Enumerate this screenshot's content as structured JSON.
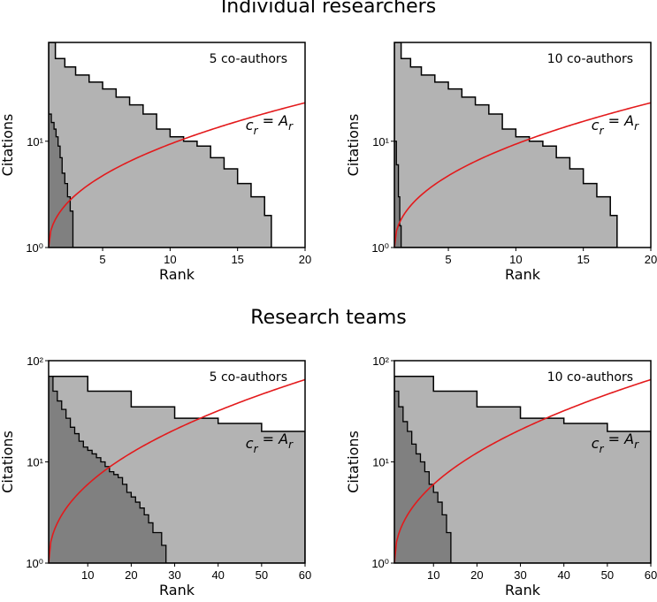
{
  "titles": {
    "top": "Individual researchers",
    "bottom": "Research teams"
  },
  "colors": {
    "light_fill": "#b3b3b3",
    "dark_fill": "#808080",
    "curve": "#e31a1c",
    "frame": "#000000"
  },
  "chart_data": [
    {
      "type": "area",
      "panel": "top-left",
      "annotation": "5 co-authors",
      "equation": {
        "lhs_base": "c",
        "lhs_sub": "r",
        "rhs_base": "A",
        "rhs_sub": "r"
      },
      "xlabel": "Rank",
      "ylabel": "Citations",
      "xlim": [
        1,
        20
      ],
      "ylim": [
        1,
        85
      ],
      "y_scale": "log",
      "x_ticks": [
        5,
        10,
        15,
        20
      ],
      "y_ticks": [
        {
          "value": 1,
          "label": "10⁰"
        },
        {
          "value": 10,
          "label": "10¹"
        }
      ],
      "series": [
        {
          "role": "light",
          "x": [
            1,
            1.5,
            2.2,
            3,
            4,
            5,
            6,
            7,
            8,
            9,
            10,
            11,
            12,
            13,
            14,
            15,
            16,
            17,
            17.5
          ],
          "y": [
            85,
            60,
            50,
            42,
            36,
            31,
            26,
            22,
            18,
            13,
            11,
            10,
            9,
            7,
            5.5,
            4,
            3,
            2,
            2
          ]
        },
        {
          "role": "dark",
          "x": [
            1,
            1.2,
            1.4,
            1.55,
            1.7,
            1.85,
            2,
            2.2,
            2.4,
            2.6,
            2.8
          ],
          "y": [
            18,
            15,
            13,
            11,
            9,
            7,
            5,
            4,
            3,
            2.2,
            2.2
          ]
        },
        {
          "role": "curve",
          "x": [
            1,
            20
          ],
          "y": [
            1,
            23
          ],
          "exponent": 1.05
        }
      ]
    },
    {
      "type": "area",
      "panel": "top-right",
      "annotation": "10 co-authors",
      "equation": {
        "lhs_base": "c",
        "lhs_sub": "r",
        "rhs_base": "A",
        "rhs_sub": "r"
      },
      "xlabel": "Rank",
      "ylabel": "Citations",
      "xlim": [
        1,
        20
      ],
      "ylim": [
        1,
        85
      ],
      "y_scale": "log",
      "x_ticks": [
        5,
        10,
        15,
        20
      ],
      "y_ticks": [
        {
          "value": 1,
          "label": "10⁰"
        },
        {
          "value": 10,
          "label": "10¹"
        }
      ],
      "series": [
        {
          "role": "light",
          "x": [
            1,
            1.5,
            2.2,
            3,
            4,
            5,
            6,
            7,
            8,
            9,
            10,
            11,
            12,
            13,
            14,
            15,
            16,
            17,
            17.5
          ],
          "y": [
            85,
            60,
            50,
            42,
            36,
            31,
            26,
            22,
            18,
            13,
            11,
            10,
            9,
            7,
            5.5,
            4,
            3,
            2,
            2
          ]
        },
        {
          "role": "dark",
          "x": [
            1,
            1.15,
            1.3,
            1.4,
            1.5
          ],
          "y": [
            10,
            6,
            3,
            1.6,
            1.6
          ]
        },
        {
          "role": "curve",
          "x": [
            1,
            20
          ],
          "y": [
            1,
            23
          ],
          "exponent": 1.05
        }
      ]
    },
    {
      "type": "area",
      "panel": "bottom-left",
      "annotation": "5 co-authors",
      "equation": {
        "lhs_base": "c",
        "lhs_sub": "r",
        "rhs_base": "A",
        "rhs_sub": "r"
      },
      "xlabel": "Rank",
      "ylabel": "Citations",
      "xlim": [
        1,
        60
      ],
      "ylim": [
        1,
        100
      ],
      "y_scale": "log",
      "x_ticks": [
        10,
        20,
        30,
        40,
        50,
        60
      ],
      "y_ticks": [
        {
          "value": 1,
          "label": "10⁰"
        },
        {
          "value": 10,
          "label": "10¹"
        },
        {
          "value": 100,
          "label": "10²"
        }
      ],
      "series": [
        {
          "role": "light",
          "x": [
            1,
            10,
            20,
            30,
            40,
            50,
            60
          ],
          "y": [
            70,
            50,
            35,
            27,
            24,
            20,
            18
          ]
        },
        {
          "role": "dark",
          "x": [
            1,
            2,
            3,
            4,
            5,
            6,
            7,
            8,
            9,
            10,
            11,
            12,
            13,
            14,
            15,
            16,
            17,
            18,
            19,
            20,
            21,
            22,
            23,
            24,
            25,
            26,
            27,
            28
          ],
          "y": [
            70,
            50,
            40,
            33,
            27,
            22,
            19,
            16,
            14,
            13,
            12,
            11,
            10,
            9,
            8,
            7.5,
            7,
            6,
            5,
            4.5,
            4,
            3.5,
            3,
            2.5,
            2,
            2,
            1.5,
            1.5
          ]
        },
        {
          "role": "curve",
          "x": [
            1,
            60
          ],
          "y": [
            1,
            65
          ],
          "exponent": 1.05
        }
      ]
    },
    {
      "type": "area",
      "panel": "bottom-right",
      "annotation": "10 co-authors",
      "equation": {
        "lhs_base": "c",
        "lhs_sub": "r",
        "rhs_base": "A",
        "rhs_sub": "r"
      },
      "xlabel": "Rank",
      "ylabel": "Citations",
      "xlim": [
        1,
        60
      ],
      "ylim": [
        1,
        100
      ],
      "y_scale": "log",
      "x_ticks": [
        10,
        20,
        30,
        40,
        50,
        60
      ],
      "y_ticks": [
        {
          "value": 1,
          "label": "10⁰"
        },
        {
          "value": 10,
          "label": "10¹"
        },
        {
          "value": 100,
          "label": "10²"
        }
      ],
      "series": [
        {
          "role": "light",
          "x": [
            1,
            10,
            20,
            30,
            40,
            50,
            60
          ],
          "y": [
            70,
            50,
            35,
            27,
            24,
            20,
            18
          ]
        },
        {
          "role": "dark",
          "x": [
            1,
            2,
            3,
            4,
            5,
            6,
            7,
            8,
            9,
            10,
            11,
            12,
            13,
            14
          ],
          "y": [
            50,
            35,
            25,
            20,
            15,
            12,
            10,
            8,
            6,
            5,
            4,
            3,
            2,
            2
          ]
        },
        {
          "role": "curve",
          "x": [
            1,
            60
          ],
          "y": [
            1,
            65
          ],
          "exponent": 1.05
        }
      ]
    }
  ]
}
